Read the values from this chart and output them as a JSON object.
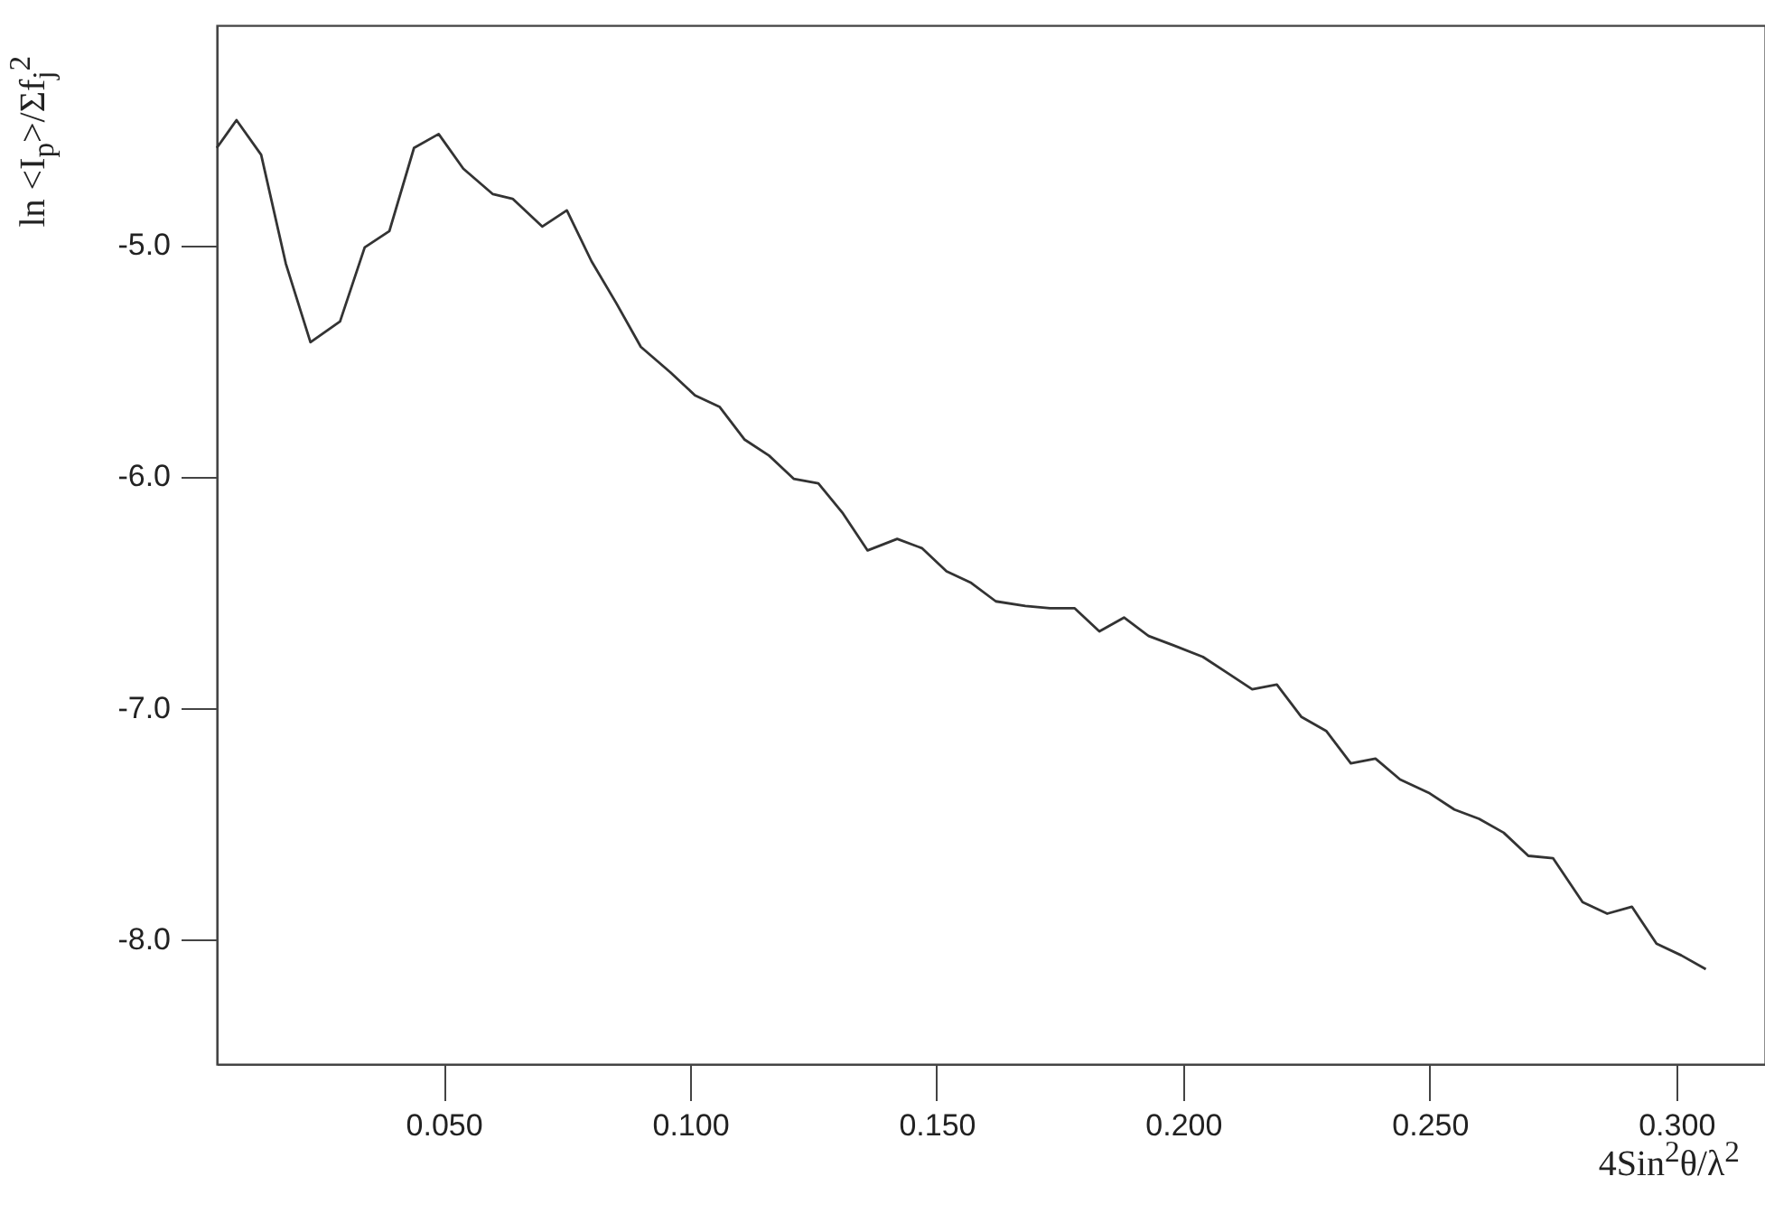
{
  "chart_data": {
    "type": "line",
    "xlabel": "4Sin$^{2}$θ/λ$^{2}$",
    "ylabel": "ln <I$_{p}$>/Σf$_{j}$$^{2}$",
    "x": [
      0.004,
      0.008,
      0.013,
      0.018,
      0.023,
      0.029,
      0.034,
      0.039,
      0.044,
      0.049,
      0.054,
      0.06,
      0.064,
      0.07,
      0.075,
      0.08,
      0.085,
      0.09,
      0.096,
      0.101,
      0.106,
      0.111,
      0.116,
      0.121,
      0.126,
      0.131,
      0.136,
      0.142,
      0.147,
      0.152,
      0.157,
      0.162,
      0.168,
      0.173,
      0.178,
      0.183,
      0.188,
      0.193,
      0.198,
      0.204,
      0.209,
      0.214,
      0.219,
      0.224,
      0.229,
      0.234,
      0.239,
      0.244,
      0.25,
      0.255,
      0.26,
      0.265,
      0.27,
      0.275,
      0.281,
      0.286,
      0.291,
      0.296,
      0.301,
      0.306
    ],
    "series": [
      {
        "color": "#333333",
        "values": [
          -4.58,
          -4.46,
          -4.61,
          -5.08,
          -5.42,
          -5.33,
          -5.01,
          -4.94,
          -4.58,
          -4.52,
          -4.67,
          -4.78,
          -4.8,
          -4.92,
          -4.85,
          -5.07,
          -5.25,
          -5.44,
          -5.55,
          -5.65,
          -5.7,
          -5.84,
          -5.91,
          -6.01,
          -6.03,
          -6.16,
          -6.32,
          -6.27,
          -6.31,
          -6.41,
          -6.46,
          -6.54,
          -6.56,
          -6.57,
          -6.57,
          -6.67,
          -6.61,
          -6.69,
          -6.73,
          -6.78,
          -6.85,
          -6.92,
          -6.9,
          -7.04,
          -7.1,
          -7.24,
          -7.22,
          -7.31,
          -7.37,
          -7.44,
          -7.48,
          -7.54,
          -7.64,
          -7.65,
          -7.84,
          -7.89,
          -7.86,
          -8.02,
          -8.07,
          -8.13
        ]
      }
    ],
    "xlim": [
      0.004,
      0.318
    ],
    "ylim": [
      -8.54,
      -4.05
    ],
    "xticks": [
      {
        "value": 0.05,
        "label": "0.050"
      },
      {
        "value": 0.1,
        "label": "0.100"
      },
      {
        "value": 0.15,
        "label": "0.150"
      },
      {
        "value": 0.2,
        "label": "0.200"
      },
      {
        "value": 0.25,
        "label": "0.250"
      },
      {
        "value": 0.3,
        "label": "0.300"
      }
    ],
    "yticks": [
      {
        "value": -5,
        "label": "-5.0"
      },
      {
        "value": -6,
        "label": "-6.0"
      },
      {
        "value": -7,
        "label": "-7.0"
      },
      {
        "value": -8,
        "label": "-8.0"
      }
    ]
  }
}
